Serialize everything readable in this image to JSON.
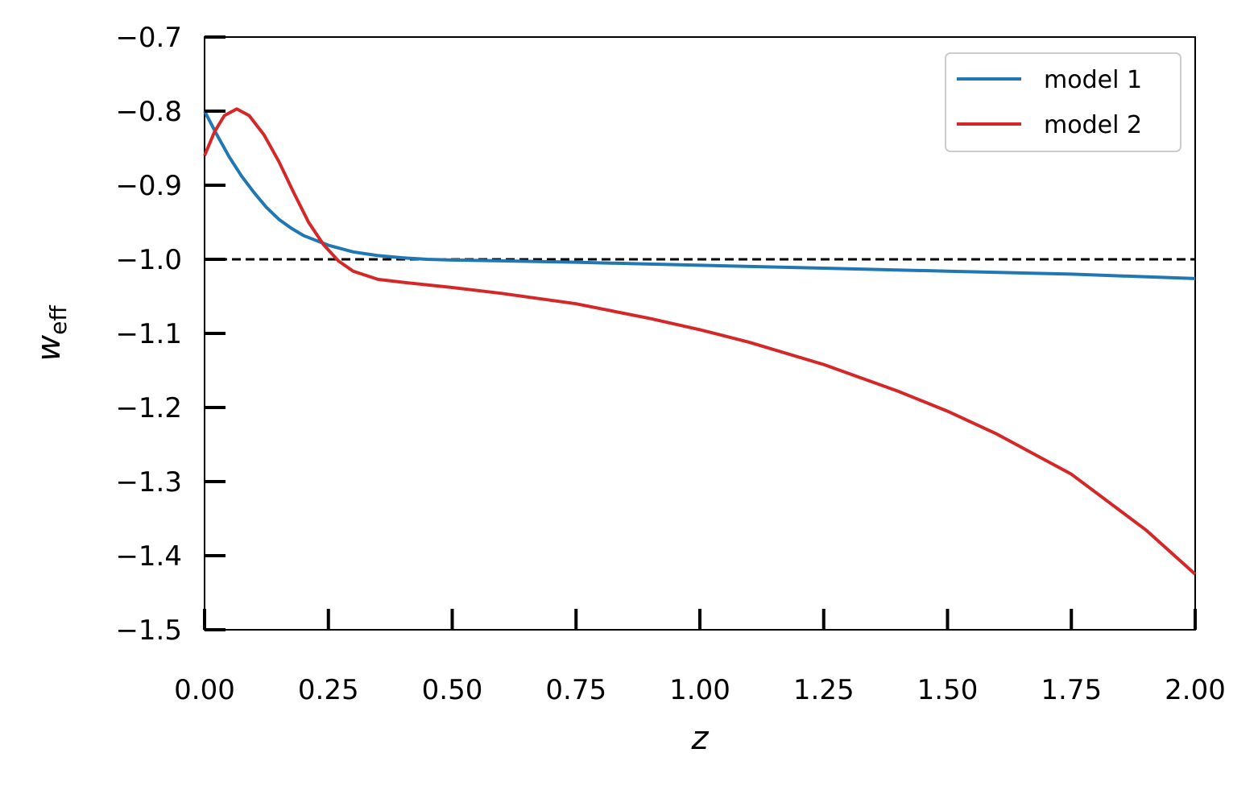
{
  "chart_data": {
    "type": "line",
    "title": "",
    "xlabel": "z",
    "ylabel_main": "w",
    "ylabel_sub": "eff",
    "xlim": [
      0,
      2
    ],
    "ylim": [
      -1.5,
      -0.7
    ],
    "xticks": [
      0,
      0.25,
      0.5,
      0.75,
      1,
      1.25,
      1.5,
      1.75,
      2
    ],
    "xtick_labels": [
      "0.00",
      "0.25",
      "0.50",
      "0.75",
      "1.00",
      "1.25",
      "1.50",
      "1.75",
      "2.00"
    ],
    "yticks": [
      -1.5,
      -1.4,
      -1.3,
      -1.2,
      -1.1,
      -1.0,
      -0.9,
      -0.8,
      -0.7
    ],
    "ytick_labels": [
      "−1.5",
      "−1.4",
      "−1.3",
      "−1.2",
      "−1.1",
      "−1.0",
      "−0.9",
      "−0.8",
      "−0.7"
    ],
    "grid": false,
    "legend_position": "top-right",
    "reference_line": {
      "y": -1.0,
      "style": "dashed",
      "color": "#000000"
    },
    "series": [
      {
        "name": "model 1",
        "color": "#1f77b4",
        "points": [
          [
            0.0,
            -0.8
          ],
          [
            0.025,
            -0.832
          ],
          [
            0.05,
            -0.862
          ],
          [
            0.075,
            -0.888
          ],
          [
            0.1,
            -0.91
          ],
          [
            0.125,
            -0.93
          ],
          [
            0.15,
            -0.946
          ],
          [
            0.175,
            -0.958
          ],
          [
            0.2,
            -0.968
          ],
          [
            0.25,
            -0.981
          ],
          [
            0.3,
            -0.99
          ],
          [
            0.35,
            -0.995
          ],
          [
            0.4,
            -0.998
          ],
          [
            0.45,
            -1.0
          ],
          [
            0.5,
            -1.001
          ],
          [
            0.6,
            -1.002
          ],
          [
            0.75,
            -1.004
          ],
          [
            1.0,
            -1.008
          ],
          [
            1.25,
            -1.012
          ],
          [
            1.5,
            -1.016
          ],
          [
            1.75,
            -1.02
          ],
          [
            2.0,
            -1.026
          ]
        ]
      },
      {
        "name": "model 2",
        "color": "#d62728",
        "points": [
          [
            0.0,
            -0.86
          ],
          [
            0.02,
            -0.828
          ],
          [
            0.04,
            -0.806
          ],
          [
            0.065,
            -0.797
          ],
          [
            0.09,
            -0.806
          ],
          [
            0.12,
            -0.832
          ],
          [
            0.15,
            -0.868
          ],
          [
            0.18,
            -0.91
          ],
          [
            0.21,
            -0.95
          ],
          [
            0.24,
            -0.98
          ],
          [
            0.27,
            -1.002
          ],
          [
            0.3,
            -1.016
          ],
          [
            0.35,
            -1.027
          ],
          [
            0.4,
            -1.031
          ],
          [
            0.5,
            -1.038
          ],
          [
            0.6,
            -1.046
          ],
          [
            0.75,
            -1.06
          ],
          [
            0.9,
            -1.08
          ],
          [
            1.0,
            -1.095
          ],
          [
            1.1,
            -1.112
          ],
          [
            1.25,
            -1.142
          ],
          [
            1.4,
            -1.178
          ],
          [
            1.5,
            -1.205
          ],
          [
            1.6,
            -1.236
          ],
          [
            1.75,
            -1.29
          ],
          [
            1.9,
            -1.365
          ],
          [
            2.0,
            -1.425
          ]
        ]
      }
    ]
  }
}
